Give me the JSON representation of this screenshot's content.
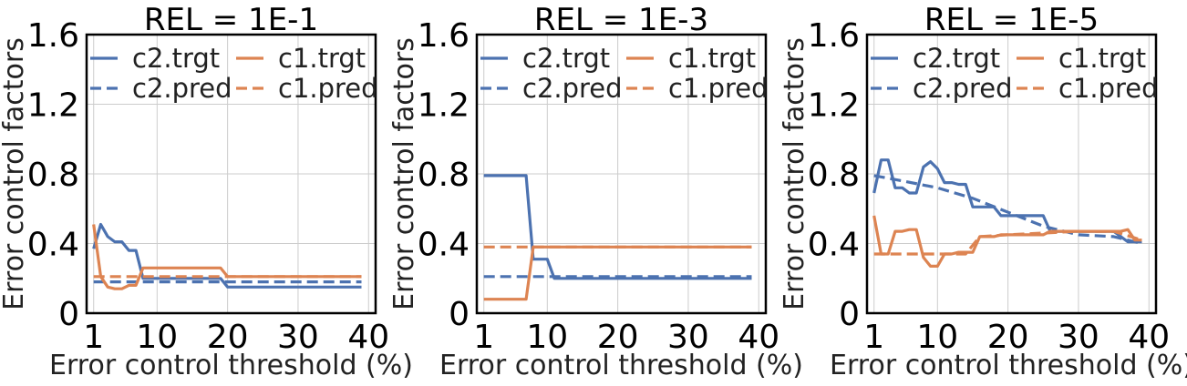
{
  "chart_data": [
    {
      "type": "line",
      "title": "REL = 1E-1",
      "xlabel": "Error control threshold (%)",
      "ylabel": "Error control factors",
      "xlim": [
        0,
        41
      ],
      "ylim": [
        0,
        1.6
      ],
      "xticks": [
        1,
        10,
        20,
        30,
        40
      ],
      "xtick_labels": [
        "1",
        "10",
        "20",
        "30",
        "40"
      ],
      "yticks": [
        0,
        0.4,
        0.8,
        1.2,
        1.6
      ],
      "ytick_labels": [
        "0",
        "0.4",
        "0.8",
        "1.2",
        "1.6"
      ],
      "grid": true,
      "legend": "top, 2 columns",
      "series": [
        {
          "name": "c2.trgt",
          "color": "#4c72b0",
          "dash": "solid",
          "x": [
            1,
            2,
            3,
            4,
            5,
            6,
            7,
            8,
            9,
            19,
            20,
            39
          ],
          "y": [
            0.37,
            0.51,
            0.44,
            0.41,
            0.41,
            0.36,
            0.36,
            0.2,
            0.2,
            0.2,
            0.15,
            0.15
          ]
        },
        {
          "name": "c2.pred",
          "color": "#4c72b0",
          "dash": "dashed",
          "x": [
            1,
            39
          ],
          "y": [
            0.18,
            0.18
          ]
        },
        {
          "name": "c1.trgt",
          "color": "#dd8452",
          "dash": "solid",
          "x": [
            1,
            2,
            3,
            4,
            5,
            6,
            7,
            8,
            9,
            19,
            20,
            39
          ],
          "y": [
            0.51,
            0.21,
            0.15,
            0.14,
            0.14,
            0.16,
            0.16,
            0.26,
            0.26,
            0.26,
            0.21,
            0.21
          ]
        },
        {
          "name": "c1.pred",
          "color": "#dd8452",
          "dash": "dashed",
          "x": [
            1,
            39
          ],
          "y": [
            0.21,
            0.21
          ]
        }
      ]
    },
    {
      "type": "line",
      "title": "REL = 1E-3",
      "xlabel": "Error control threshold (%)",
      "ylabel": "Error control factors",
      "xlim": [
        0,
        41
      ],
      "ylim": [
        0,
        1.6
      ],
      "xticks": [
        1,
        10,
        20,
        30,
        40
      ],
      "xtick_labels": [
        "1",
        "10",
        "20",
        "30",
        "40"
      ],
      "yticks": [
        0,
        0.4,
        0.8,
        1.2,
        1.6
      ],
      "ytick_labels": [
        "0",
        "0.4",
        "0.8",
        "1.2",
        "1.6"
      ],
      "grid": true,
      "legend": "top, 2 columns",
      "series": [
        {
          "name": "c2.trgt",
          "color": "#4c72b0",
          "dash": "solid",
          "x": [
            1,
            7,
            8,
            10,
            11,
            39
          ],
          "y": [
            0.79,
            0.79,
            0.31,
            0.31,
            0.2,
            0.2
          ]
        },
        {
          "name": "c2.pred",
          "color": "#4c72b0",
          "dash": "dashed",
          "x": [
            1,
            39
          ],
          "y": [
            0.21,
            0.21
          ]
        },
        {
          "name": "c1.trgt",
          "color": "#dd8452",
          "dash": "solid",
          "x": [
            1,
            7,
            8,
            39
          ],
          "y": [
            0.08,
            0.08,
            0.38,
            0.38
          ]
        },
        {
          "name": "c1.pred",
          "color": "#dd8452",
          "dash": "dashed",
          "x": [
            1,
            39
          ],
          "y": [
            0.38,
            0.38
          ]
        }
      ]
    },
    {
      "type": "line",
      "title": "REL = 1E-5",
      "xlabel": "Error control threshold (%)",
      "ylabel": "Error control factors",
      "xlim": [
        0,
        41
      ],
      "ylim": [
        0,
        1.6
      ],
      "xticks": [
        1,
        10,
        20,
        30,
        40
      ],
      "xtick_labels": [
        "1",
        "10",
        "20",
        "30",
        "40"
      ],
      "yticks": [
        0,
        0.4,
        0.8,
        1.2,
        1.6
      ],
      "ytick_labels": [
        "0",
        "0.4",
        "0.8",
        "1.2",
        "1.6"
      ],
      "grid": true,
      "legend": "top, 2 columns",
      "series": [
        {
          "name": "c2.trgt",
          "color": "#4c72b0",
          "dash": "solid",
          "x": [
            1,
            2,
            3,
            4,
            5,
            6,
            7,
            8,
            9,
            10,
            11,
            12,
            13,
            14,
            15,
            16,
            17,
            18,
            19,
            20,
            25,
            26,
            35,
            37,
            39
          ],
          "y": [
            0.69,
            0.88,
            0.88,
            0.72,
            0.72,
            0.69,
            0.69,
            0.84,
            0.87,
            0.83,
            0.75,
            0.75,
            0.74,
            0.74,
            0.61,
            0.61,
            0.61,
            0.61,
            0.56,
            0.56,
            0.56,
            0.47,
            0.47,
            0.41,
            0.41
          ]
        },
        {
          "name": "c2.pred",
          "color": "#4c72b0",
          "dash": "dashed",
          "x": [
            1,
            5,
            10,
            15,
            20,
            25,
            30,
            35,
            39
          ],
          "y": [
            0.79,
            0.76,
            0.72,
            0.66,
            0.58,
            0.5,
            0.45,
            0.44,
            0.4
          ]
        },
        {
          "name": "c1.trgt",
          "color": "#dd8452",
          "dash": "solid",
          "x": [
            1,
            2,
            3,
            4,
            5,
            6,
            7,
            8,
            9,
            10,
            11,
            12,
            13,
            14,
            15,
            16,
            17,
            18,
            19,
            20,
            25,
            26,
            36,
            37,
            38,
            39
          ],
          "y": [
            0.56,
            0.34,
            0.34,
            0.47,
            0.47,
            0.48,
            0.48,
            0.32,
            0.27,
            0.27,
            0.34,
            0.34,
            0.35,
            0.35,
            0.35,
            0.44,
            0.44,
            0.44,
            0.45,
            0.45,
            0.45,
            0.47,
            0.47,
            0.48,
            0.42,
            0.42
          ]
        },
        {
          "name": "c1.pred",
          "color": "#dd8452",
          "dash": "dashed",
          "x": [
            1,
            5,
            10,
            14,
            16,
            20,
            25,
            30,
            35,
            39
          ],
          "y": [
            0.34,
            0.34,
            0.34,
            0.34,
            0.44,
            0.45,
            0.46,
            0.47,
            0.47,
            0.42
          ]
        }
      ]
    }
  ]
}
